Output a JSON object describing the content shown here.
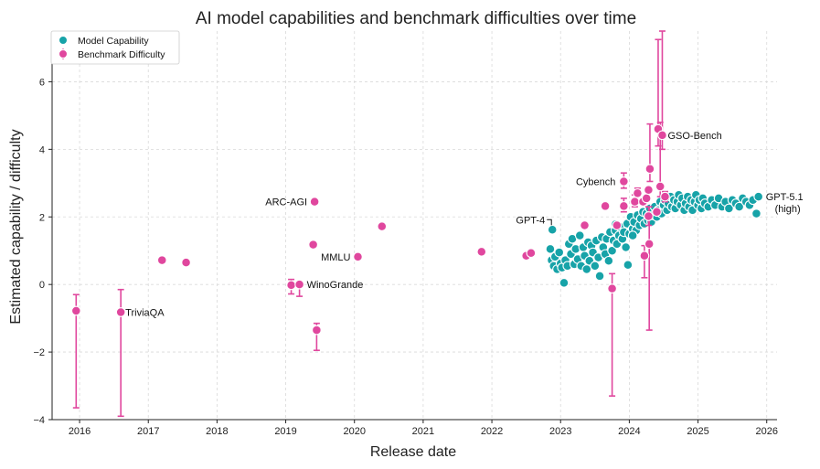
{
  "chart_data": {
    "type": "scatter",
    "title": "AI model capabilities and benchmark difficulties over time",
    "xlabel": "Release date",
    "ylabel": "Estimated capability / difficulty",
    "xlim": [
      2015.6,
      2026.15
    ],
    "ylim": [
      -4,
      7.5
    ],
    "xticks": [
      2016,
      2017,
      2018,
      2019,
      2020,
      2021,
      2022,
      2023,
      2024,
      2025,
      2026
    ],
    "xtick_labels": [
      "2016",
      "2017",
      "2018",
      "2019",
      "2020",
      "2021",
      "2022",
      "2023",
      "2024",
      "2025",
      "2026"
    ],
    "yticks": [
      -4,
      -2,
      0,
      2,
      4,
      6
    ],
    "ytick_labels": [
      "−4",
      "−2",
      "0",
      "2",
      "4",
      "6"
    ],
    "grid": true,
    "legend_position": "top-left",
    "colors": {
      "model": "#17a3a8",
      "benchmark": "#e0479e"
    },
    "series": [
      {
        "name": "Model Capability",
        "points": [
          [
            2022.85,
            1.05
          ],
          [
            2022.87,
            0.72
          ],
          [
            2022.9,
            0.55
          ],
          [
            2022.92,
            0.82
          ],
          [
            2022.95,
            0.45
          ],
          [
            2022.98,
            0.95
          ],
          [
            2023.0,
            0.62
          ],
          [
            2023.02,
            0.5
          ],
          [
            2023.05,
            0.05
          ],
          [
            2023.07,
            0.72
          ],
          [
            2023.1,
            0.55
          ],
          [
            2023.12,
            1.2
          ],
          [
            2023.15,
            0.9
          ],
          [
            2023.17,
            1.35
          ],
          [
            2023.2,
            0.6
          ],
          [
            2023.22,
            1.05
          ],
          [
            2023.25,
            0.75
          ],
          [
            2023.28,
            1.45
          ],
          [
            2023.3,
            0.55
          ],
          [
            2023.33,
            1.1
          ],
          [
            2023.35,
            0.85
          ],
          [
            2023.38,
            0.45
          ],
          [
            2023.4,
            1.25
          ],
          [
            2023.42,
            0.7
          ],
          [
            2023.45,
            1.15
          ],
          [
            2023.47,
            0.95
          ],
          [
            2023.5,
            0.55
          ],
          [
            2023.52,
            1.3
          ],
          [
            2023.55,
            0.8
          ],
          [
            2023.57,
            0.25
          ],
          [
            2023.6,
            1.4
          ],
          [
            2023.62,
            1.1
          ],
          [
            2023.65,
            0.9
          ],
          [
            2023.67,
            1.35
          ],
          [
            2023.7,
            0.7
          ],
          [
            2023.72,
            1.55
          ],
          [
            2023.75,
            1.0
          ],
          [
            2023.77,
            1.3
          ],
          [
            2023.8,
            1.6
          ],
          [
            2023.82,
            1.2
          ],
          [
            2023.85,
            1.45
          ],
          [
            2023.87,
            1.7
          ],
          [
            2023.9,
            1.35
          ],
          [
            2023.92,
            1.55
          ],
          [
            2023.95,
            1.1
          ],
          [
            2023.97,
            1.8
          ],
          [
            2024.0,
            1.5
          ],
          [
            2024.02,
            2.0
          ],
          [
            2024.05,
            1.65
          ],
          [
            2024.07,
            1.85
          ],
          [
            2024.1,
            1.6
          ],
          [
            2024.12,
            2.05
          ],
          [
            2024.15,
            1.75
          ],
          [
            2024.17,
            1.95
          ],
          [
            2024.2,
            2.15
          ],
          [
            2024.22,
            1.8
          ],
          [
            2024.25,
            2.1
          ],
          [
            2024.27,
            1.9
          ],
          [
            2024.3,
            2.25
          ],
          [
            2024.32,
            1.85
          ],
          [
            2024.35,
            2.05
          ],
          [
            2024.37,
            2.3
          ],
          [
            2024.4,
            2.0
          ],
          [
            2024.42,
            2.2
          ],
          [
            2024.45,
            2.45
          ],
          [
            2024.47,
            2.1
          ],
          [
            2024.5,
            2.35
          ],
          [
            2024.52,
            2.5
          ],
          [
            2024.55,
            2.2
          ],
          [
            2024.57,
            2.4
          ],
          [
            2024.6,
            2.6
          ],
          [
            2024.62,
            2.3
          ],
          [
            2024.65,
            2.5
          ],
          [
            2024.67,
            2.25
          ],
          [
            2024.7,
            2.45
          ],
          [
            2024.72,
            2.65
          ],
          [
            2024.75,
            2.35
          ],
          [
            2024.77,
            2.55
          ],
          [
            2024.8,
            2.2
          ],
          [
            2024.82,
            2.4
          ],
          [
            2024.85,
            2.6
          ],
          [
            2024.87,
            2.3
          ],
          [
            2024.9,
            2.5
          ],
          [
            2024.92,
            2.2
          ],
          [
            2024.95,
            2.45
          ],
          [
            2024.97,
            2.65
          ],
          [
            2025.0,
            2.35
          ],
          [
            2025.02,
            2.5
          ],
          [
            2025.05,
            2.25
          ],
          [
            2025.07,
            2.55
          ],
          [
            2025.1,
            2.4
          ],
          [
            2025.15,
            2.3
          ],
          [
            2025.2,
            2.5
          ],
          [
            2025.25,
            2.35
          ],
          [
            2025.3,
            2.55
          ],
          [
            2025.35,
            2.3
          ],
          [
            2025.4,
            2.45
          ],
          [
            2025.45,
            2.25
          ],
          [
            2025.5,
            2.5
          ],
          [
            2025.55,
            2.4
          ],
          [
            2025.6,
            2.3
          ],
          [
            2025.65,
            2.55
          ],
          [
            2025.7,
            2.45
          ],
          [
            2025.75,
            2.35
          ],
          [
            2025.8,
            2.5
          ],
          [
            2025.85,
            2.1
          ],
          [
            2025.88,
            2.6
          ],
          [
            2022.88,
            1.62
          ],
          [
            2023.8,
            1.78
          ],
          [
            2023.98,
            0.58
          ],
          [
            2024.05,
            1.45
          ]
        ]
      },
      {
        "name": "Benchmark Difficulty",
        "points": [
          {
            "x": 2015.95,
            "y": -0.78,
            "lo": -3.65,
            "hi": -0.3
          },
          {
            "x": 2016.6,
            "y": -0.82,
            "lo": -3.9,
            "hi": -0.15
          },
          {
            "x": 2017.2,
            "y": 0.72
          },
          {
            "x": 2017.55,
            "y": 0.65
          },
          {
            "x": 2019.08,
            "y": -0.02,
            "lo": -0.28,
            "hi": 0.15
          },
          {
            "x": 2019.2,
            "y": 0.0,
            "lo": -0.35,
            "hi": 0.05
          },
          {
            "x": 2019.4,
            "y": 1.18
          },
          {
            "x": 2019.42,
            "y": 2.45
          },
          {
            "x": 2019.45,
            "y": -1.35,
            "lo": -1.95,
            "hi": -1.15
          },
          {
            "x": 2020.05,
            "y": 0.82
          },
          {
            "x": 2020.4,
            "y": 1.72
          },
          {
            "x": 2021.85,
            "y": 0.97
          },
          {
            "x": 2022.5,
            "y": 0.85
          },
          {
            "x": 2022.57,
            "y": 0.93
          },
          {
            "x": 2023.35,
            "y": 1.75
          },
          {
            "x": 2023.65,
            "y": 2.32
          },
          {
            "x": 2023.75,
            "y": -0.12,
            "lo": -3.3,
            "hi": 0.32
          },
          {
            "x": 2023.82,
            "y": 1.75
          },
          {
            "x": 2023.92,
            "y": 3.05,
            "lo": 2.85,
            "hi": 3.3
          },
          {
            "x": 2023.92,
            "y": 2.32,
            "lo": 2.15,
            "hi": 2.55
          },
          {
            "x": 2024.08,
            "y": 2.45,
            "lo": 2.3,
            "hi": 2.65
          },
          {
            "x": 2024.12,
            "y": 2.7,
            "lo": 2.5,
            "hi": 2.85
          },
          {
            "x": 2024.2,
            "y": 2.45
          },
          {
            "x": 2024.25,
            "y": 2.55
          },
          {
            "x": 2024.22,
            "y": 0.85,
            "lo": 0.2,
            "hi": 1.15
          },
          {
            "x": 2024.28,
            "y": 2.02,
            "lo": 1.75,
            "hi": 2.3
          },
          {
            "x": 2024.29,
            "y": 1.2,
            "lo": -1.35,
            "hi": 2.3
          },
          {
            "x": 2024.3,
            "y": 3.42,
            "lo": 3.05,
            "hi": 4.75
          },
          {
            "x": 2024.28,
            "y": 2.8
          },
          {
            "x": 2024.4,
            "y": 2.15
          },
          {
            "x": 2024.42,
            "y": 4.6,
            "lo": 4.1,
            "hi": 7.25
          },
          {
            "x": 2024.45,
            "y": 2.9,
            "lo": 2.6,
            "hi": 4.8
          },
          {
            "x": 2024.48,
            "y": 4.42,
            "lo": 4.0,
            "hi": 7.5
          },
          {
            "x": 2024.52,
            "y": 2.6,
            "lo": 2.45,
            "hi": 2.75
          }
        ]
      }
    ],
    "annotations": [
      {
        "text": "TriviaQA",
        "x": 2016.6,
        "y": -0.82,
        "dx": 5,
        "dy": 4,
        "anchor": "start"
      },
      {
        "text": "WinoGrande",
        "x": 2019.2,
        "y": 0.0,
        "dx": 8,
        "dy": 4,
        "anchor": "start"
      },
      {
        "text": "ARC-AGI",
        "x": 2019.42,
        "y": 2.45,
        "dx": -8,
        "dy": 4,
        "anchor": "end"
      },
      {
        "text": "MMLU",
        "x": 2020.05,
        "y": 0.82,
        "dx": -8,
        "dy": 4,
        "anchor": "end"
      },
      {
        "text": "Cybench",
        "x": 2023.92,
        "y": 3.05,
        "dx": -9,
        "dy": 4,
        "anchor": "end"
      },
      {
        "text": "GSO-Bench",
        "x": 2024.48,
        "y": 4.42,
        "dx": 6,
        "dy": 4,
        "anchor": "start"
      },
      {
        "text": "GPT-4",
        "x": 2022.88,
        "y": 1.62,
        "dx": -8,
        "dy": -7,
        "anchor": "end",
        "leader": true
      },
      {
        "text": "GPT-5.1",
        "x": 2025.88,
        "y": 2.6,
        "dx": 8,
        "dy": 4,
        "anchor": "start"
      },
      {
        "text": "(high)",
        "x": 2025.88,
        "y": 2.6,
        "dx": 46,
        "dy": 17,
        "anchor": "end"
      }
    ]
  }
}
